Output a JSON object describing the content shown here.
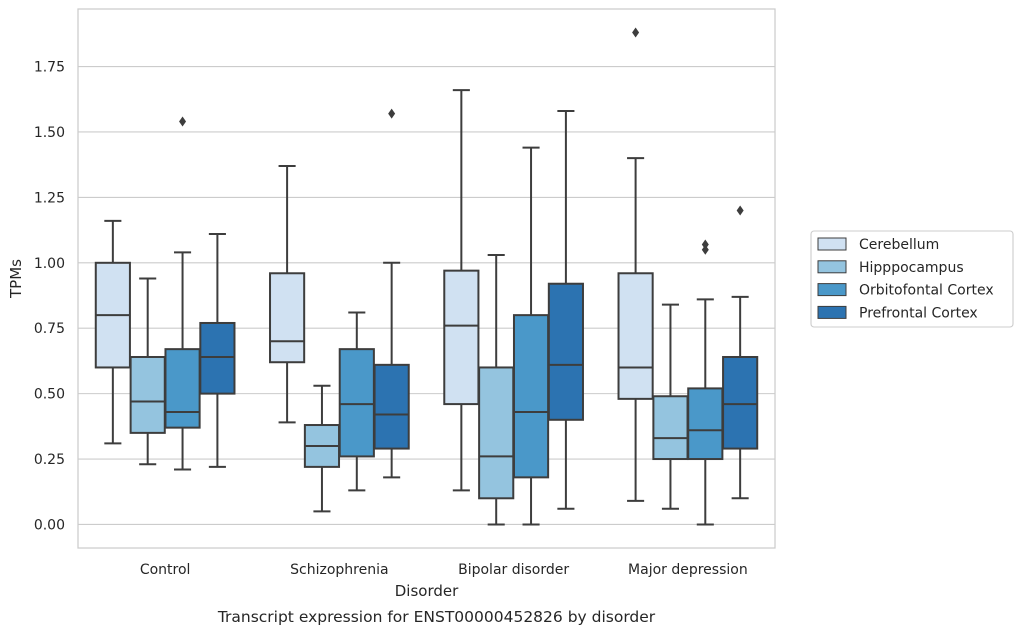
{
  "chart_data": {
    "type": "boxplot",
    "caption": "Transcript expression for ENST00000452826 by disorder",
    "xlabel": "Disorder",
    "ylabel": "TPMs",
    "ylim": [
      -0.09,
      1.97
    ],
    "yticks": [
      "0.00",
      "0.25",
      "0.50",
      "0.75",
      "1.00",
      "1.25",
      "1.50",
      "1.75"
    ],
    "grid": "horizontal",
    "legend_position": "right",
    "categories": [
      "Control",
      "Schizophrenia",
      "Bipolar disorder",
      "Major depression"
    ],
    "series": [
      {
        "name": "Cerebellum",
        "color": "#d0e1f2",
        "boxes": [
          {
            "whisker_low": 0.31,
            "q1": 0.6,
            "median": 0.8,
            "q3": 1.0,
            "whisker_high": 1.16,
            "outliers": []
          },
          {
            "whisker_low": 0.39,
            "q1": 0.62,
            "median": 0.7,
            "q3": 0.96,
            "whisker_high": 1.37,
            "outliers": []
          },
          {
            "whisker_low": 0.13,
            "q1": 0.46,
            "median": 0.76,
            "q3": 0.97,
            "whisker_high": 1.66,
            "outliers": []
          },
          {
            "whisker_low": 0.09,
            "q1": 0.48,
            "median": 0.6,
            "q3": 0.96,
            "whisker_high": 1.4,
            "outliers": [
              1.88
            ]
          }
        ]
      },
      {
        "name": "Hipppocampus",
        "color": "#94c4df",
        "boxes": [
          {
            "whisker_low": 0.23,
            "q1": 0.35,
            "median": 0.47,
            "q3": 0.64,
            "whisker_high": 0.94,
            "outliers": []
          },
          {
            "whisker_low": 0.05,
            "q1": 0.22,
            "median": 0.3,
            "q3": 0.38,
            "whisker_high": 0.53,
            "outliers": []
          },
          {
            "whisker_low": 0.0,
            "q1": 0.1,
            "median": 0.26,
            "q3": 0.6,
            "whisker_high": 1.03,
            "outliers": []
          },
          {
            "whisker_low": 0.06,
            "q1": 0.25,
            "median": 0.33,
            "q3": 0.49,
            "whisker_high": 0.84,
            "outliers": []
          }
        ]
      },
      {
        "name": "Orbitofontal Cortex",
        "color": "#4a98c9",
        "boxes": [
          {
            "whisker_low": 0.21,
            "q1": 0.37,
            "median": 0.43,
            "q3": 0.67,
            "whisker_high": 1.04,
            "outliers": [
              1.54
            ]
          },
          {
            "whisker_low": 0.13,
            "q1": 0.26,
            "median": 0.46,
            "q3": 0.67,
            "whisker_high": 0.81,
            "outliers": []
          },
          {
            "whisker_low": 0.0,
            "q1": 0.18,
            "median": 0.43,
            "q3": 0.8,
            "whisker_high": 1.44,
            "outliers": []
          },
          {
            "whisker_low": 0.0,
            "q1": 0.25,
            "median": 0.36,
            "q3": 0.52,
            "whisker_high": 0.86,
            "outliers": [
              1.05,
              1.07
            ]
          }
        ]
      },
      {
        "name": "Prefrontal Cortex",
        "color": "#2c73b1",
        "boxes": [
          {
            "whisker_low": 0.22,
            "q1": 0.5,
            "median": 0.64,
            "q3": 0.77,
            "whisker_high": 1.11,
            "outliers": []
          },
          {
            "whisker_low": 0.18,
            "q1": 0.29,
            "median": 0.42,
            "q3": 0.61,
            "whisker_high": 1.0,
            "outliers": [
              1.57
            ]
          },
          {
            "whisker_low": 0.06,
            "q1": 0.4,
            "median": 0.61,
            "q3": 0.92,
            "whisker_high": 1.58,
            "outliers": []
          },
          {
            "whisker_low": 0.1,
            "q1": 0.29,
            "median": 0.46,
            "q3": 0.64,
            "whisker_high": 0.87,
            "outliers": [
              1.2
            ]
          }
        ]
      }
    ]
  }
}
